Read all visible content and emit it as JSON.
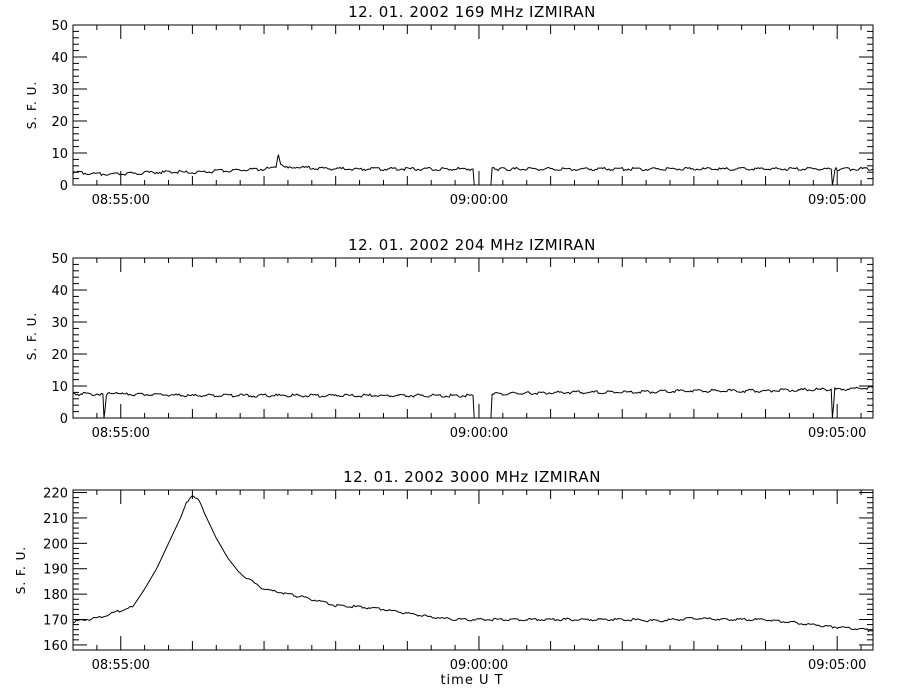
{
  "xlabel": "time  U T",
  "chart_data": [
    {
      "type": "line",
      "title": "12. 01. 2002   169 MHz   IZMIRAN",
      "ylabel": "S. F. U.",
      "xlim": [
        "08:54:20",
        "09:05:30"
      ],
      "ylim": [
        0,
        50
      ],
      "yticks": [
        0,
        10,
        20,
        30,
        40,
        50
      ],
      "xticks": [
        "08:55:00",
        "09:00:00",
        "09:05:00"
      ],
      "series": [
        {
          "x": [
            "08:54:20",
            "08:54:40",
            "08:55:00",
            "08:55:30",
            "08:56:00",
            "08:56:30",
            "08:57:00",
            "08:57:10",
            "08:57:12",
            "08:57:14",
            "08:57:30",
            "08:58:00",
            "08:58:30",
            "08:59:00",
            "08:59:30",
            "08:59:55",
            "08:59:56",
            "09:00:10",
            "09:00:11",
            "09:00:30",
            "09:01:00",
            "09:01:30",
            "09:02:00",
            "09:02:30",
            "09:03:00",
            "09:03:30",
            "09:04:00",
            "09:04:30",
            "09:04:55",
            "09:04:56",
            "09:04:58",
            "09:05:00",
            "09:05:30"
          ],
          "values": [
            4,
            3.5,
            3.5,
            4,
            4,
            4.5,
            5,
            5.5,
            10,
            6,
            5.5,
            5,
            5,
            5,
            5,
            5,
            -2,
            -2,
            5,
            5,
            5,
            5,
            5,
            5,
            5,
            5,
            5,
            5,
            5,
            -1,
            5,
            5,
            5
          ]
        }
      ]
    },
    {
      "type": "line",
      "title": "12. 01. 2002   204 MHz   IZMIRAN",
      "ylabel": "S. F. U.",
      "xlim": [
        "08:54:20",
        "09:05:30"
      ],
      "ylim": [
        0,
        50
      ],
      "yticks": [
        0,
        10,
        20,
        30,
        40,
        50
      ],
      "xticks": [
        "08:55:00",
        "09:00:00",
        "09:05:00"
      ],
      "series": [
        {
          "x": [
            "08:54:20",
            "08:54:45",
            "08:54:46",
            "08:54:48",
            "08:55:00",
            "08:56:00",
            "08:57:00",
            "08:58:00",
            "08:59:00",
            "08:59:55",
            "08:59:56",
            "09:00:10",
            "09:00:11",
            "09:01:00",
            "09:02:00",
            "09:03:00",
            "09:04:00",
            "09:04:55",
            "09:04:56",
            "09:04:58",
            "09:05:00",
            "09:05:30"
          ],
          "values": [
            7.5,
            7.5,
            -1,
            7.5,
            7.5,
            7,
            7,
            7,
            7,
            7,
            -2,
            -2,
            7.5,
            8,
            8,
            8.5,
            8.5,
            9,
            -1,
            9,
            9,
            9.5
          ]
        }
      ]
    },
    {
      "type": "line",
      "title": "12. 01. 2002   3000 MHz   IZMIRAN",
      "ylabel": "S. F. U.",
      "xlim": [
        "08:54:20",
        "09:05:30"
      ],
      "ylim": [
        158,
        221
      ],
      "yticks": [
        160,
        170,
        180,
        190,
        200,
        210,
        220
      ],
      "xticks": [
        "08:55:00",
        "09:00:00",
        "09:05:00"
      ],
      "series": [
        {
          "x": [
            "08:54:20",
            "08:54:30",
            "08:54:40",
            "08:54:50",
            "08:55:00",
            "08:55:10",
            "08:55:20",
            "08:55:30",
            "08:55:40",
            "08:55:50",
            "08:55:55",
            "08:56:00",
            "08:56:05",
            "08:56:10",
            "08:56:20",
            "08:56:30",
            "08:56:40",
            "08:56:50",
            "08:57:00",
            "08:57:20",
            "08:57:40",
            "08:58:00",
            "08:58:20",
            "08:58:40",
            "08:59:00",
            "08:59:20",
            "08:59:40",
            "09:00:00",
            "09:00:30",
            "09:01:00",
            "09:01:30",
            "09:02:00",
            "09:02:30",
            "09:03:00",
            "09:03:30",
            "09:04:00",
            "09:04:20",
            "09:04:40",
            "09:05:00",
            "09:05:15",
            "09:05:30"
          ],
          "values": [
            169,
            170,
            170.5,
            172,
            173.5,
            175,
            182,
            190,
            200,
            210,
            216,
            219,
            217,
            212,
            202,
            194,
            188,
            185,
            182,
            180,
            178,
            175.5,
            175,
            174,
            172.5,
            171,
            170,
            170,
            170,
            170,
            170,
            170,
            169.5,
            170.5,
            170,
            170,
            169,
            168,
            167,
            166.5,
            165.5
          ]
        }
      ]
    }
  ]
}
